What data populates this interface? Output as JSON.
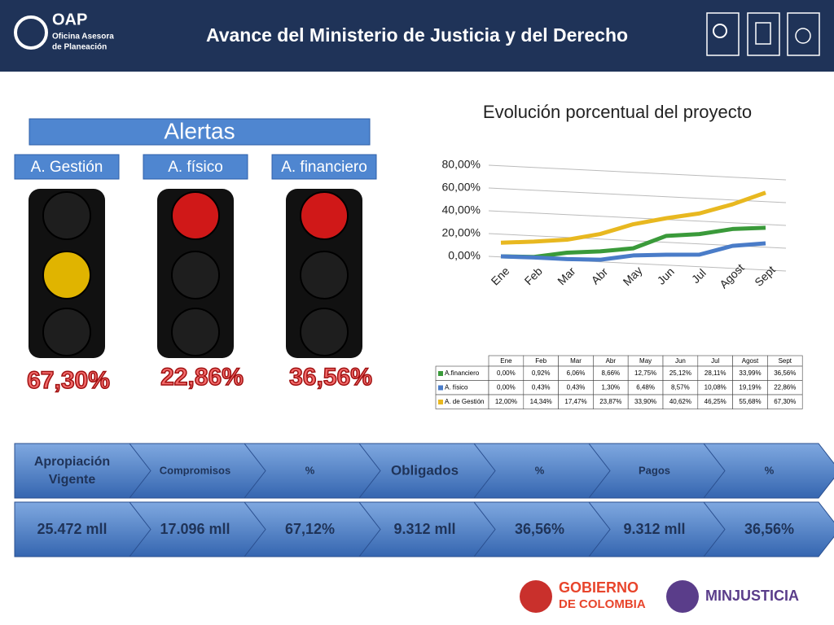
{
  "header": {
    "logo": "OAP",
    "logo_line1": "Oficina Asesora",
    "logo_line2": "de Planeación",
    "title": "Avance del Ministerio de Justicia y del Derecho"
  },
  "alerts": {
    "title": "Alertas",
    "labels": [
      "A. Gestión",
      "A. físico",
      "A. financiero"
    ],
    "percents": [
      "67,30%",
      "22,86%",
      "36,56%"
    ]
  },
  "chart_data": {
    "type": "line",
    "title": "Evolución porcentual del proyecto",
    "categories": [
      "Ene",
      "Feb",
      "Mar",
      "Abr",
      "May",
      "Jun",
      "Jul",
      "Agost",
      "Sept"
    ],
    "ylim": [
      0,
      80
    ],
    "yticks": [
      {
        "value": 0,
        "label": "0,00%"
      },
      {
        "value": 20,
        "label": "20,00%"
      },
      {
        "value": 40,
        "label": "40,00%"
      },
      {
        "value": 60,
        "label": "60,00%"
      },
      {
        "value": 80,
        "label": "80,00%"
      }
    ],
    "grid": true,
    "series": [
      {
        "name": "A.financiero",
        "color": "#3a9a3a",
        "values": [
          0,
          0.92,
          6.06,
          8.66,
          12.75,
          25.12,
          28.11,
          33.99,
          36.56
        ],
        "value_labels": [
          "0,00%",
          "0,92%",
          "6,06%",
          "8,66%",
          "12,75%",
          "25,12%",
          "28,11%",
          "33,99%",
          "36,56%"
        ]
      },
      {
        "name": "A. físico",
        "color": "#4a7cc8",
        "values": [
          0,
          0.43,
          0.43,
          1.3,
          6.48,
          8.57,
          10.08,
          19.19,
          22.86
        ],
        "value_labels": [
          "0,00%",
          "0,43%",
          "0,43%",
          "1,30%",
          "6,48%",
          "8,57%",
          "10,08%",
          "19,19%",
          "22,86%"
        ]
      },
      {
        "name": "A. de Gestión",
        "color": "#e8b820",
        "values": [
          12,
          14.34,
          17.47,
          23.87,
          33.9,
          40.62,
          46.25,
          55.68,
          67.3
        ],
        "value_labels": [
          "12,00%",
          "14,34%",
          "17,47%",
          "23,87%",
          "33,90%",
          "40,62%",
          "46,25%",
          "55,68%",
          "67,30%"
        ]
      }
    ]
  },
  "pipeline": {
    "headers": [
      "Apropiación Vigente",
      "Compromisos",
      "%",
      "Obligados",
      "%",
      "Pagos",
      "%"
    ],
    "values": [
      "25.472 mll",
      "17.096 mll",
      "67,12%",
      "9.312 mll",
      "36,56%",
      "9.312 mll",
      "36,56%"
    ]
  },
  "footer": {
    "gobierno_line1": "GOBIERNO",
    "gobierno_line2": "DE COLOMBIA",
    "minjusticia": "MINJUSTICIA"
  }
}
